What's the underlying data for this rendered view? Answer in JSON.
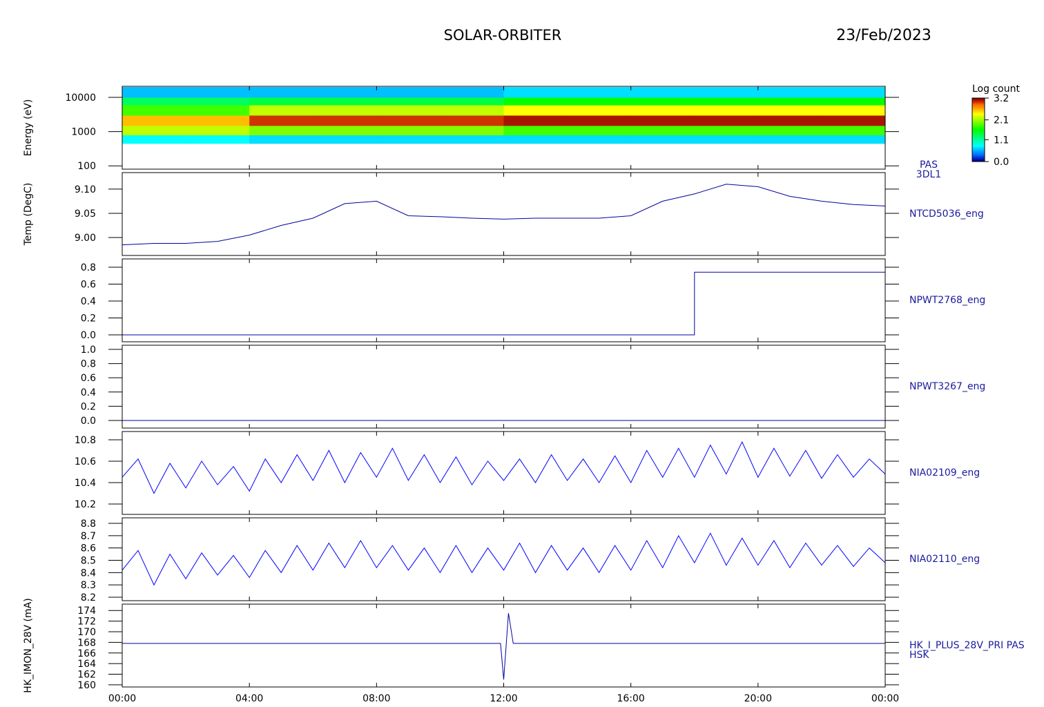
{
  "header": {
    "title": "SOLAR-ORBITER",
    "date": "23/Feb/2023"
  },
  "chart_data": [
    {
      "type": "heatmap",
      "ylabel": "Energy (eV)",
      "labels": [
        "PAS",
        "3DL1"
      ],
      "log": true,
      "ylim": [
        80,
        21000
      ],
      "yticks": [
        100,
        1000,
        10000
      ],
      "xlim": [
        0,
        24
      ],
      "x": [
        0,
        2,
        4,
        6,
        8,
        10,
        12,
        14,
        16,
        18,
        20,
        22,
        24
      ],
      "y": [
        450,
        800,
        1500,
        3000,
        6000,
        10000,
        20000
      ],
      "z": [
        [
          0.8,
          2.2,
          2.6,
          1.8,
          1.3,
          0.6
        ],
        [
          0.8,
          2.2,
          2.6,
          1.8,
          1.3,
          0.6
        ],
        [
          0.7,
          2.0,
          3.0,
          2.2,
          1.4,
          0.6
        ],
        [
          0.7,
          2.0,
          3.0,
          2.2,
          1.4,
          0.6
        ],
        [
          0.7,
          2.0,
          3.0,
          2.2,
          1.4,
          0.6
        ],
        [
          0.7,
          2.0,
          3.0,
          2.2,
          1.4,
          0.6
        ],
        [
          0.7,
          1.8,
          3.1,
          2.4,
          1.6,
          0.7
        ],
        [
          0.7,
          1.8,
          3.1,
          2.4,
          1.6,
          0.7
        ],
        [
          0.7,
          1.8,
          3.1,
          2.4,
          1.6,
          0.7
        ],
        [
          0.7,
          1.8,
          3.1,
          2.4,
          1.6,
          0.7
        ],
        [
          0.7,
          1.8,
          3.1,
          2.4,
          1.6,
          0.7
        ],
        [
          0.7,
          1.8,
          3.1,
          2.4,
          1.6,
          0.7
        ]
      ],
      "colorbar": {
        "label": "Log count",
        "lim": [
          0,
          3.2
        ],
        "ticks": [
          {
            "value": 0,
            "label": "0.0"
          },
          1.1,
          2.1,
          3.2
        ]
      }
    },
    {
      "type": "line",
      "ylabel": "Temp (DegC)",
      "labels": [
        "NTCD5036_eng"
      ],
      "color": "#0000a0",
      "ylim": [
        8.963,
        9.134
      ],
      "yticks": [
        {
          "value": 9.0,
          "label": "9.00"
        },
        9.05,
        {
          "value": 9.1,
          "label": "9.10"
        }
      ],
      "xlim": [
        0,
        24
      ],
      "x": [
        0,
        1,
        2,
        3,
        4,
        5,
        6,
        7,
        8,
        9,
        10,
        11,
        12,
        13,
        14,
        15,
        16,
        17,
        18,
        19,
        20,
        21,
        22,
        23,
        24
      ],
      "values": [
        8.985,
        8.988,
        8.988,
        8.992,
        9.005,
        9.025,
        9.04,
        9.07,
        9.075,
        9.045,
        9.043,
        9.04,
        9.038,
        9.04,
        9.04,
        9.04,
        9.045,
        9.075,
        9.09,
        9.11,
        9.105,
        9.085,
        9.075,
        9.068,
        9.065
      ]
    },
    {
      "type": "line",
      "labels": [
        "NPWT2768_eng"
      ],
      "color": "#0000a0",
      "ylim": [
        -0.082,
        0.898
      ],
      "yticks": [
        {
          "value": 0,
          "label": "0.0"
        },
        0.2,
        0.4,
        0.6,
        0.8
      ],
      "xlim": [
        0,
        24
      ],
      "x": [
        0,
        18,
        18,
        24
      ],
      "values": [
        0,
        0,
        0.74,
        0.74
      ]
    },
    {
      "type": "line",
      "labels": [
        "NPWT3267_eng"
      ],
      "color": "#0000a0",
      "ylim": [
        -0.107,
        1.058
      ],
      "yticks": [
        {
          "value": 0,
          "label": "0.0"
        },
        0.2,
        0.4,
        0.6,
        0.8,
        {
          "value": 1,
          "label": "1.0"
        }
      ],
      "xlim": [
        0,
        24
      ],
      "x": [
        0,
        24
      ],
      "values": [
        0,
        0
      ]
    },
    {
      "type": "line",
      "labels": [
        "NIA02109_eng"
      ],
      "color": "#0000ff",
      "ylim": [
        10.103,
        10.877
      ],
      "yticks": [
        10.2,
        10.4,
        10.6,
        10.8
      ],
      "xlim": [
        0,
        24
      ],
      "x": [
        0,
        0.5,
        1,
        1.5,
        2,
        2.5,
        3,
        3.5,
        4,
        4.5,
        5,
        5.5,
        6,
        6.5,
        7,
        7.5,
        8,
        8.5,
        9,
        9.5,
        10,
        10.5,
        11,
        11.5,
        12,
        12.5,
        13,
        13.5,
        14,
        14.5,
        15,
        15.5,
        16,
        16.5,
        17,
        17.5,
        18,
        18.5,
        19,
        19.5,
        20,
        20.5,
        21,
        21.5,
        22,
        22.5,
        23,
        23.5,
        24
      ],
      "values": [
        10.45,
        10.62,
        10.3,
        10.58,
        10.35,
        10.6,
        10.38,
        10.55,
        10.32,
        10.62,
        10.4,
        10.66,
        10.42,
        10.7,
        10.4,
        10.68,
        10.45,
        10.72,
        10.42,
        10.66,
        10.4,
        10.64,
        10.38,
        10.6,
        10.42,
        10.62,
        10.4,
        10.66,
        10.42,
        10.62,
        10.4,
        10.65,
        10.4,
        10.7,
        10.45,
        10.72,
        10.45,
        10.75,
        10.48,
        10.78,
        10.45,
        10.72,
        10.46,
        10.7,
        10.44,
        10.66,
        10.45,
        10.62,
        10.48
      ]
    },
    {
      "type": "line",
      "labels": [
        "NIA02110_eng"
      ],
      "color": "#0000ff",
      "ylim": [
        8.172,
        8.845
      ],
      "yticks": [
        8.2,
        8.3,
        8.4,
        8.5,
        8.6,
        8.7,
        8.8
      ],
      "xlim": [
        0,
        24
      ],
      "x": [
        0,
        0.5,
        1,
        1.5,
        2,
        2.5,
        3,
        3.5,
        4,
        4.5,
        5,
        5.5,
        6,
        6.5,
        7,
        7.5,
        8,
        8.5,
        9,
        9.5,
        10,
        10.5,
        11,
        11.5,
        12,
        12.5,
        13,
        13.5,
        14,
        14.5,
        15,
        15.5,
        16,
        16.5,
        17,
        17.5,
        18,
        18.5,
        19,
        19.5,
        20,
        20.5,
        21,
        21.5,
        22,
        22.5,
        23,
        23.5,
        24
      ],
      "values": [
        8.42,
        8.58,
        8.3,
        8.55,
        8.35,
        8.56,
        8.38,
        8.54,
        8.36,
        8.58,
        8.4,
        8.62,
        8.42,
        8.64,
        8.44,
        8.66,
        8.44,
        8.62,
        8.42,
        8.6,
        8.4,
        8.62,
        8.4,
        8.6,
        8.42,
        8.64,
        8.4,
        8.62,
        8.42,
        8.6,
        8.4,
        8.62,
        8.42,
        8.66,
        8.44,
        8.7,
        8.48,
        8.72,
        8.46,
        8.68,
        8.46,
        8.66,
        8.44,
        8.64,
        8.46,
        8.62,
        8.45,
        8.6,
        8.48
      ]
    },
    {
      "type": "line",
      "ylabel": "HK_IMON_28V (mA)",
      "labels": [
        "HK_I_PLUS_28V_PRI PAS",
        "HSK"
      ],
      "color": "#0000a0",
      "ylim": [
        159.6,
        175.2
      ],
      "yticks": [
        160,
        162,
        164,
        166,
        168,
        170,
        172,
        174
      ],
      "xlim": [
        0,
        24
      ],
      "x": [
        0,
        11.9,
        12.0,
        12.15,
        12.3,
        24
      ],
      "values": [
        167.8,
        167.8,
        161,
        173.5,
        167.8,
        167.8
      ],
      "xticks": [
        {
          "value": 0,
          "label": "00:00"
        },
        {
          "value": 4,
          "label": "04:00"
        },
        {
          "value": 8,
          "label": "08:00"
        },
        {
          "value": 12,
          "label": "12:00"
        },
        {
          "value": 16,
          "label": "16:00"
        },
        {
          "value": 20,
          "label": "20:00"
        },
        {
          "value": 24,
          "label": "00:00"
        }
      ]
    }
  ]
}
